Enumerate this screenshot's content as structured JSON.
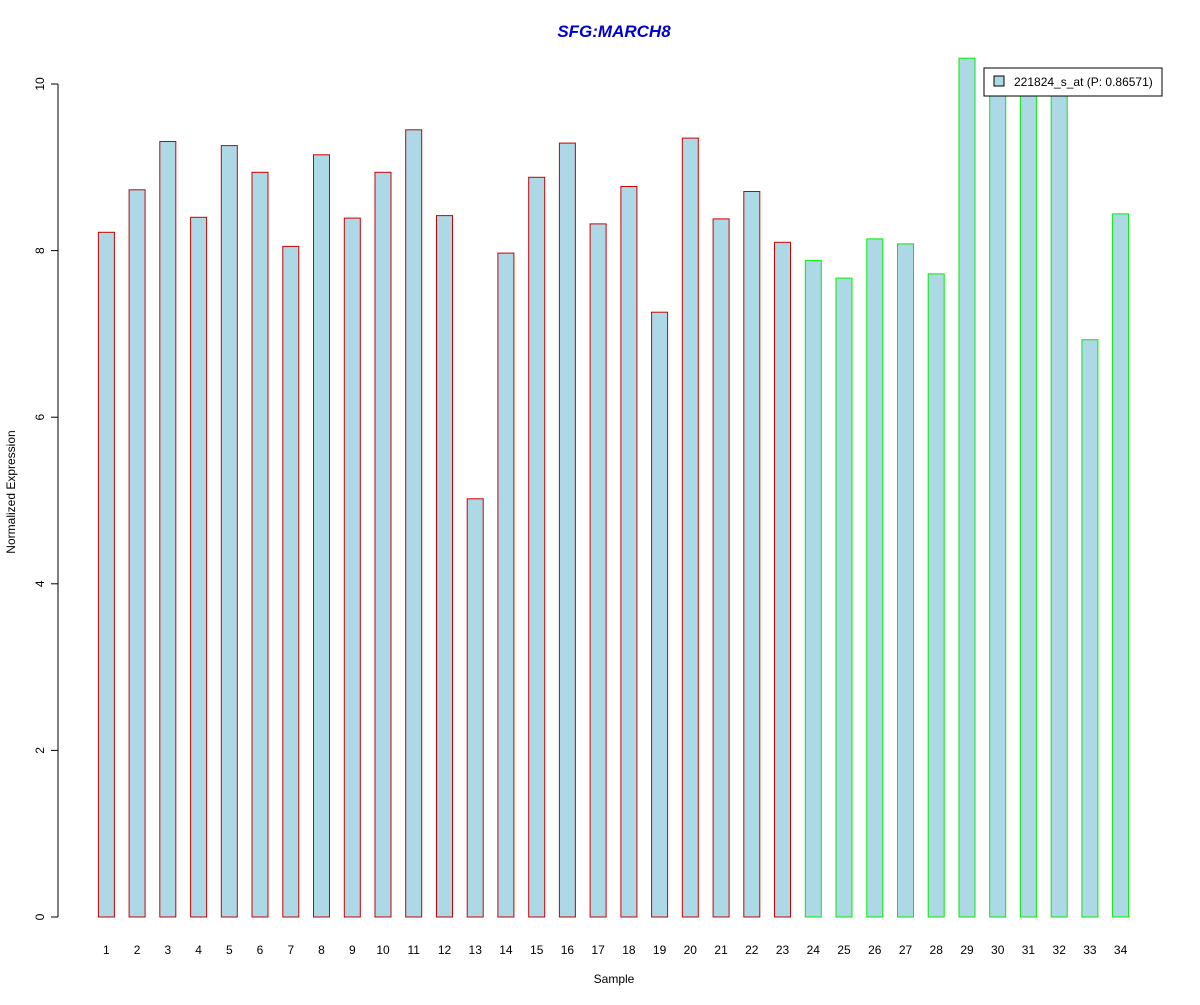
{
  "chart_data": {
    "type": "bar",
    "title": "SFG:MARCH8",
    "xlabel": "Sample",
    "ylabel": "Normalized Expression",
    "ylim": [
      0,
      10.3
    ],
    "yticks": [
      0,
      2,
      4,
      6,
      8,
      10
    ],
    "categories": [
      "1",
      "2",
      "3",
      "4",
      "5",
      "6",
      "7",
      "8",
      "9",
      "10",
      "11",
      "12",
      "13",
      "14",
      "15",
      "16",
      "17",
      "18",
      "19",
      "20",
      "21",
      "22",
      "23",
      "24",
      "25",
      "26",
      "27",
      "28",
      "29",
      "30",
      "31",
      "32",
      "33",
      "34"
    ],
    "series": [
      {
        "name": "221824_s_at (P: 0.86571)",
        "values": [
          8.22,
          8.73,
          9.31,
          8.4,
          9.26,
          8.94,
          8.05,
          9.15,
          8.39,
          8.94,
          9.45,
          8.42,
          5.02,
          7.97,
          8.88,
          9.29,
          8.32,
          8.77,
          7.26,
          9.35,
          8.38,
          8.71,
          8.1,
          7.88,
          7.67,
          8.14,
          8.08,
          7.72,
          10.31,
          9.91,
          9.87,
          9.89,
          6.93,
          8.44
        ]
      }
    ],
    "group_sizes": [
      23,
      11
    ],
    "colors": {
      "bar_fill": "#add8e6",
      "group1_border": "#cc0000",
      "group2_border": "#00ee00",
      "title": "#0000cc",
      "legend_swatch": "#add8e6"
    },
    "legend_position": "top-right",
    "grid": false
  }
}
